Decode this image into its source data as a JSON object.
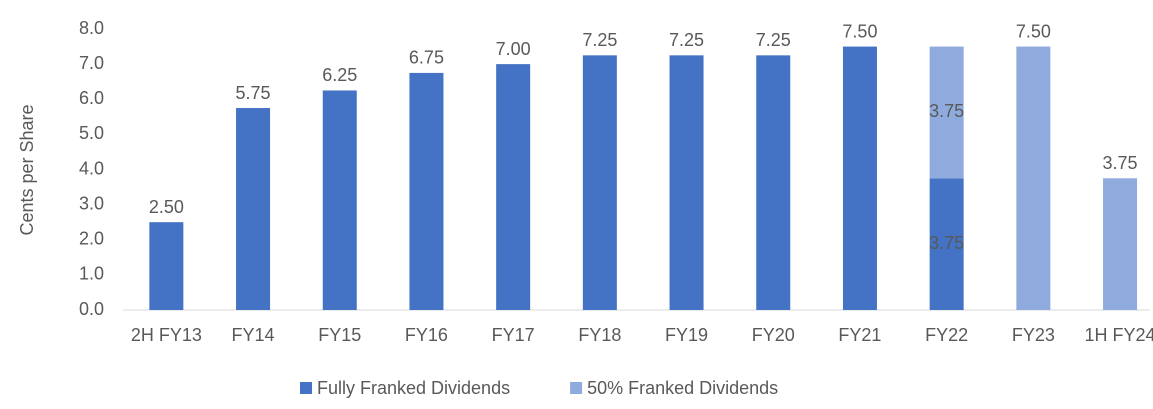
{
  "chart_data": {
    "type": "stacked-bar",
    "y_label": "Cents per Share",
    "categories": [
      "2H FY13",
      "FY14",
      "FY15",
      "FY16",
      "FY17",
      "FY18",
      "FY19",
      "FY20",
      "FY21",
      "FY22",
      "FY23",
      "1H FY24"
    ],
    "series": [
      {
        "name": "Fully Franked Dividends",
        "color": "#4472c4",
        "values": [
          2.5,
          5.75,
          6.25,
          6.75,
          7.0,
          7.25,
          7.25,
          7.25,
          7.5,
          3.75,
          null,
          null
        ],
        "value_labels": [
          "2.50",
          "5.75",
          "6.25",
          "6.75",
          "7.00",
          "7.25",
          "7.25",
          "7.25",
          "7.50",
          "3.75",
          null,
          null
        ]
      },
      {
        "name": "50% Franked Dividends",
        "color": "#8faadc",
        "values": [
          null,
          null,
          null,
          null,
          null,
          null,
          null,
          null,
          null,
          3.75,
          7.5,
          3.75
        ],
        "value_labels": [
          null,
          null,
          null,
          null,
          null,
          null,
          null,
          null,
          null,
          "3.75",
          "7.50",
          "3.75"
        ]
      }
    ],
    "ylim": [
      0,
      8
    ],
    "yticks": [
      {
        "value": 0,
        "label": "0.0"
      },
      {
        "value": 1,
        "label": "1.0"
      },
      {
        "value": 2,
        "label": "2.0"
      },
      {
        "value": 3,
        "label": "3.0"
      },
      {
        "value": 4,
        "label": "4.0"
      },
      {
        "value": 5,
        "label": "5.0"
      },
      {
        "value": 6,
        "label": "6.0"
      },
      {
        "value": 7,
        "label": "7.0"
      },
      {
        "value": 8,
        "label": "8.0"
      }
    ],
    "grid": false,
    "legend": "bottom"
  }
}
